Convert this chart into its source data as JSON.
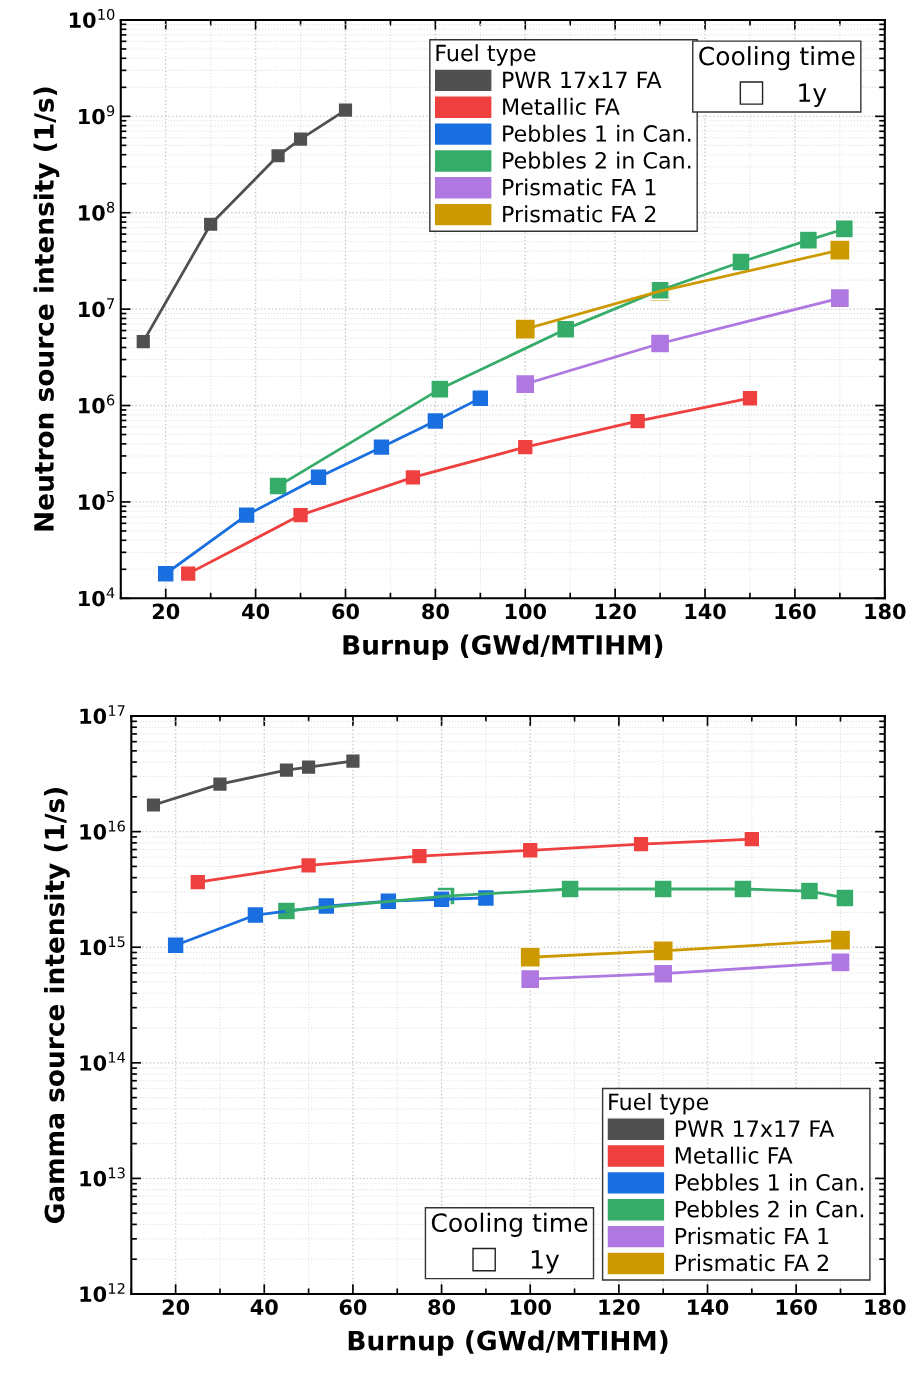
{
  "chart_data": [
    {
      "type": "line",
      "xlabel": "Burnup (GWd/MTIHM)",
      "ylabel": "Neutron source intensity (1/s)",
      "legend_title": "Fuel type",
      "annotations": [
        "Cooling time",
        "1y"
      ],
      "log": "y",
      "grid": true,
      "legend": "top",
      "marker": "square",
      "line_style": "solid",
      "xlim": [
        10,
        180
      ],
      "xticks": [
        20,
        40,
        60,
        80,
        100,
        120,
        140,
        160,
        180
      ],
      "ylim": [
        10000,
        10000000000
      ],
      "yticks": [
        {
          "value": 10000,
          "label": "10$^{4}$"
        },
        {
          "value": 100000,
          "label": "10$^{5}$"
        },
        {
          "value": 1000000,
          "label": "10$^{6}$"
        },
        {
          "value": 10000000,
          "label": "10$^{7}$"
        },
        {
          "value": 100000000,
          "label": "10$^{8}$"
        },
        {
          "value": 1000000000,
          "label": "10$^{9}$"
        },
        {
          "value": 10000000000,
          "label": "10$^{10}$"
        }
      ],
      "series": [
        {
          "name": "PWR 17x17 FA",
          "color": "#505050",
          "x": [
            15,
            30,
            45,
            50,
            60
          ],
          "values": [
            4600000,
            76000000,
            390000000,
            580000000,
            1160000000
          ]
        },
        {
          "name": "Metallic FA",
          "color": "#ef4040",
          "x": [
            25,
            50,
            75,
            100,
            125,
            150
          ],
          "values": [
            18000,
            73000,
            180000,
            370000,
            690000,
            1190000
          ]
        },
        {
          "name": "Pebbles 1 in Can.",
          "color": "#1a6fe0",
          "x": [
            20,
            38,
            54,
            68,
            80,
            90
          ],
          "values": [
            18000,
            73000,
            180000,
            370000,
            690000,
            1190000
          ]
        },
        {
          "name": "Pebbles 2 in Can.",
          "color": "#36ac6a",
          "x": [
            45,
            81,
            109,
            130,
            148,
            163,
            171
          ],
          "values": [
            146000,
            1480000,
            6200000,
            15700000,
            30800000,
            52000000,
            68000000
          ]
        },
        {
          "name": "Prismatic FA 1",
          "color": "#ae78e0",
          "x": [
            100,
            130,
            170
          ],
          "values": [
            1670000,
            4400000,
            13000000
          ]
        },
        {
          "name": "Prismatic FA 2",
          "color": "#cc9900",
          "x": [
            100,
            130,
            170
          ],
          "values": [
            6200000,
            15400000,
            41000000
          ]
        }
      ]
    },
    {
      "type": "line",
      "xlabel": "Burnup (GWd/MTIHM)",
      "ylabel": "Gamma source intensity (1/s)",
      "legend_title": "Fuel type",
      "annotations": [
        "Cooling time",
        "1y"
      ],
      "log": "y",
      "grid": true,
      "legend": "bottom right",
      "marker": "square",
      "line_style": "solid",
      "xlim": [
        10,
        180
      ],
      "xticks": [
        20,
        40,
        60,
        80,
        100,
        120,
        140,
        160,
        180
      ],
      "ylim": [
        1000000000000.0,
        1e+17
      ],
      "yticks": [
        {
          "value": 1000000000000.0,
          "label": "10$^{12}$"
        },
        {
          "value": 10000000000000.0,
          "label": "10$^{13}$"
        },
        {
          "value": 100000000000000.0,
          "label": "10$^{14}$"
        },
        {
          "value": 1000000000000000.0,
          "label": "10$^{15}$"
        },
        {
          "value": 1e+16,
          "label": "10$^{16}$"
        },
        {
          "value": 1e+17,
          "label": "10$^{17}$"
        }
      ],
      "series": [
        {
          "name": "PWR 17x17 FA",
          "color": "#505050",
          "x": [
            15,
            30,
            45,
            50,
            60
          ],
          "values": [
            1.7e+16,
            2.58e+16,
            3.41e+16,
            3.62e+16,
            4.08e+16
          ]
        },
        {
          "name": "Metallic FA",
          "color": "#ef4040",
          "x": [
            25,
            50,
            75,
            100,
            125,
            150
          ],
          "values": [
            3660000000000000.0,
            5100000000000000.0,
            6150000000000000.0,
            6900000000000000.0,
            7800000000000000.0,
            8600000000000000.0
          ]
        },
        {
          "name": "Pebbles 1 in Can.",
          "color": "#1a6fe0",
          "x": [
            20,
            38,
            54,
            68,
            80,
            90
          ],
          "values": [
            1040000000000000.0,
            1900000000000000.0,
            2270000000000000.0,
            2500000000000000.0,
            2600000000000000.0,
            2670000000000000.0
          ]
        },
        {
          "name": "Pebbles 2 in Can.",
          "color": "#36ac6a",
          "x": [
            45,
            81,
            109,
            130,
            148,
            163,
            171
          ],
          "values": [
            2060000000000000.0,
            2770000000000000.0,
            3190000000000000.0,
            3190000000000000.0,
            3190000000000000.0,
            3060000000000000.0,
            2670000000000000.0
          ]
        },
        {
          "name": "Prismatic FA 1",
          "color": "#ae78e0",
          "x": [
            100,
            130,
            170
          ],
          "values": [
            530000000000000.0,
            590000000000000.0,
            740000000000000.0
          ]
        },
        {
          "name": "Prismatic FA 2",
          "color": "#cc9900",
          "x": [
            100,
            130,
            170
          ],
          "values": [
            820000000000000.0,
            930000000000000.0,
            1150000000000000.0
          ]
        }
      ]
    }
  ]
}
